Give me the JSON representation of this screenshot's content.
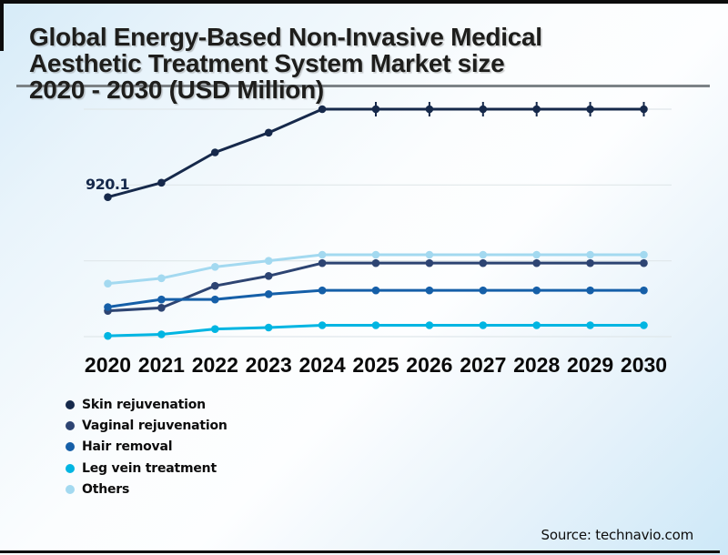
{
  "header": {
    "title_lines": [
      "Global Energy-Based Non-Invasive Medical",
      "Aesthetic Treatment System Market size",
      "2020 - 2030 (USD Million)"
    ]
  },
  "source": {
    "label": "Source: technavio.com"
  },
  "chart_data": {
    "type": "line",
    "title": "Global Energy-Based Non-Invasive Medical Aesthetic Treatment System Market size 2020 - 2030 (USD Million)",
    "xlabel": "",
    "ylabel": "USD Million",
    "y_axis_visible": false,
    "grid": true,
    "legend_position": "bottom-left",
    "x_tick_labels": [
      "2020",
      "2021",
      "2022",
      "2023",
      "2024",
      "2025",
      "2026",
      "2027",
      "2028",
      "2029",
      "2030"
    ],
    "series": [
      {
        "name": "Skin rejuvenation",
        "color": "#16294b",
        "values": [
          920.1,
          1015,
          1215,
          1345,
          1500,
          1500,
          1500,
          1500,
          1500,
          1500,
          1500
        ]
      },
      {
        "name": "Vaginal rejuvenation",
        "color": "#2d4472",
        "values": [
          170,
          190,
          335,
          400,
          485,
          485,
          485,
          485,
          485,
          485,
          485
        ]
      },
      {
        "name": "Hair removal",
        "color": "#155fa8",
        "values": [
          195,
          245,
          245,
          280,
          305,
          305,
          305,
          305,
          305,
          305,
          305
        ]
      },
      {
        "name": "Leg vein treatment",
        "color": "#00b5e2",
        "values": [
          5,
          15,
          50,
          60,
          75,
          75,
          75,
          75,
          75,
          75,
          75
        ]
      },
      {
        "name": "Others",
        "color": "#a3d9f0",
        "values": [
          350,
          385,
          460,
          500,
          540,
          540,
          540,
          540,
          540,
          540,
          540
        ]
      }
    ],
    "data_label": {
      "series": "Skin rejuvenation",
      "year": "2020",
      "text": "920.1"
    },
    "note": "Only the 2020 Skin rejuvenation value (920.1) is labeled and no y-axis is shown; other values estimated from plot positions. Top series flattens at the plot top from 2024 onward."
  },
  "legend": {
    "items": [
      "Skin rejuvenation",
      "Vaginal rejuvenation",
      "Hair removal",
      "Leg vein treatment",
      "Others"
    ]
  }
}
